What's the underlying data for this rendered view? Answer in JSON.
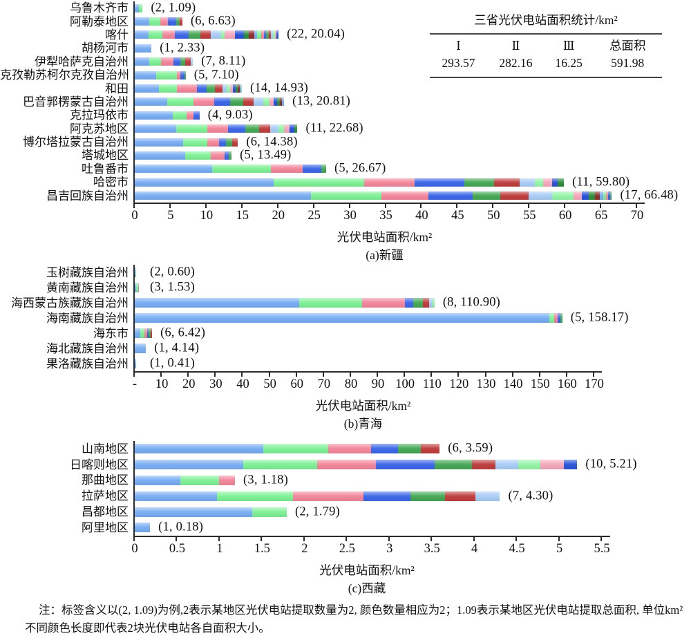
{
  "palette_cycle": [
    "#79ADF2",
    "#7FF096",
    "#F2879C",
    "#3E68E8",
    "#47A857",
    "#BF3F3F",
    "#A9CDF6",
    "#96F5A8",
    "#F5A8BC",
    "#2B55D8",
    "#2F8F3C",
    "#8F2F2F"
  ],
  "table": {
    "title": "三省光伏电站面积统计/km²",
    "headers": [
      "Ⅰ",
      "Ⅱ",
      "Ⅲ",
      "总面积"
    ],
    "values": [
      "293.57",
      "282.16",
      "16.25",
      "591.98"
    ]
  },
  "note": {
    "line1": "注：标签含义以(2, 1.09)为例,2表示某地区光伏电站提取数量为2, 颜色数量相应为2；1.09表示某地区光伏电站提取总面积, 单位km²",
    "line2": "不同颜色长度即代表2块光伏电站各自面积大小。"
  },
  "chart_data": [
    {
      "type": "bar",
      "stacked": true,
      "orientation": "horizontal",
      "title": "(a)新疆",
      "xlabel": "光伏电站面积/km²",
      "xlim": [
        0,
        70
      ],
      "xticks": [
        "0",
        "5",
        "10",
        "15",
        "20",
        "25",
        "30",
        "35",
        "40",
        "45",
        "50",
        "55",
        "60",
        "65",
        "70"
      ],
      "rows": [
        {
          "label": "乌鲁木齐市",
          "count": 2,
          "total": 1.09,
          "annotation": "(2, 1.09)",
          "segments": [
            0.55,
            0.54
          ]
        },
        {
          "label": "阿勒泰地区",
          "count": 6,
          "total": 6.63,
          "annotation": "(6, 6.63)",
          "segments": [
            2.0,
            1.6,
            1.0,
            1.2,
            0.5,
            0.33
          ]
        },
        {
          "label": "喀什",
          "count": 22,
          "total": 20.04,
          "annotation": "(22, 20.04)",
          "segments": [
            1.93,
            1.92,
            1.75,
            1.9,
            1.65,
            1.45,
            1.4,
            0.5,
            1.5,
            1.2,
            0.7,
            0.8,
            0.4,
            0.5,
            0.45,
            0.3,
            0.35,
            0.3,
            0.25,
            0.3,
            0.25,
            0.24
          ]
        },
        {
          "label": "胡杨河市",
          "count": 1,
          "total": 2.33,
          "annotation": "(1, 2.33)",
          "segments": [
            2.33
          ]
        },
        {
          "label": "伊犁哈萨克自治州",
          "count": 7,
          "total": 8.11,
          "annotation": "(7, 8.11)",
          "segments": [
            2.0,
            1.7,
            1.7,
            1.0,
            0.6,
            0.8,
            0.31
          ]
        },
        {
          "label": "克孜勒苏柯尔克孜自治州",
          "count": 5,
          "total": 7.1,
          "annotation": "(5, 7.10)",
          "segments": [
            3.0,
            2.9,
            0.5,
            0.5,
            0.2
          ]
        },
        {
          "label": "和田",
          "count": 14,
          "total": 14.93,
          "annotation": "(14, 14.93)",
          "segments": [
            3.4,
            2.5,
            2.8,
            1.3,
            1.2,
            1.0,
            0.6,
            0.5,
            0.4,
            0.35,
            0.3,
            0.25,
            0.2,
            0.13
          ]
        },
        {
          "label": "巴音郭楞蒙古自治州",
          "count": 13,
          "total": 20.81,
          "annotation": "(13, 20.81)",
          "segments": [
            4.5,
            3.7,
            2.9,
            2.2,
            1.8,
            1.5,
            1.35,
            0.8,
            0.6,
            0.5,
            0.4,
            0.3,
            0.26
          ]
        },
        {
          "label": "克拉玛依市",
          "count": 4,
          "total": 9.03,
          "annotation": "(4, 9.03)",
          "segments": [
            5.3,
            1.9,
            1.0,
            0.83
          ]
        },
        {
          "label": "阿克苏地区",
          "count": 11,
          "total": 22.68,
          "annotation": "(11, 22.68)",
          "segments": [
            5.8,
            4.3,
            2.9,
            2.4,
            1.9,
            1.55,
            1.15,
            0.8,
            0.75,
            0.67,
            0.46
          ]
        },
        {
          "label": "博尔塔拉蒙古自治州",
          "count": 6,
          "total": 14.38,
          "annotation": "(6, 14.38)",
          "segments": [
            6.7,
            3.4,
            1.65,
            1.0,
            0.8,
            0.83
          ]
        },
        {
          "label": "塔城地区",
          "count": 5,
          "total": 13.49,
          "annotation": "(5, 13.49)",
          "segments": [
            7.0,
            3.6,
            1.9,
            0.6,
            0.39
          ]
        },
        {
          "label": "吐鲁番市",
          "count": 5,
          "total": 26.67,
          "annotation": "(5, 26.67)",
          "segments": [
            10.8,
            8.2,
            4.4,
            2.6,
            0.67
          ]
        },
        {
          "label": "哈密市",
          "count": 11,
          "total": 59.8,
          "annotation": "(11, 59.80)",
          "segments": [
            19.4,
            12.6,
            7.0,
            6.9,
            4.2,
            3.5,
            2.2,
            1.1,
            1.3,
            0.7,
            0.9
          ]
        },
        {
          "label": "昌吉回族自治州",
          "count": 17,
          "total": 66.48,
          "annotation": "(17, 66.48)",
          "segments": [
            24.6,
            9.8,
            6.5,
            6.2,
            3.8,
            4.0,
            3.3,
            2.9,
            1.2,
            1.0,
            0.8,
            0.7,
            0.5,
            0.4,
            0.3,
            0.28,
            0.2
          ]
        }
      ]
    },
    {
      "type": "bar",
      "stacked": true,
      "orientation": "horizontal",
      "title": "(b)青海",
      "xlabel": "光伏电站面积/km²",
      "xlim": [
        0,
        170
      ],
      "xticks": [
        "-",
        "10",
        "20",
        "30",
        "40",
        "50",
        "60",
        "70",
        "80",
        "90",
        "100",
        "110",
        "120",
        "130",
        "140",
        "150",
        "160",
        "170"
      ],
      "rows": [
        {
          "label": "玉树藏族自治州",
          "count": 2,
          "total": 0.6,
          "annotation": "(2, 0.60)",
          "segments": [
            0.25,
            0.35
          ]
        },
        {
          "label": "黄南藏族自治州",
          "count": 3,
          "total": 1.53,
          "annotation": "(3, 1.53)",
          "segments": [
            0.45,
            0.85,
            0.23
          ]
        },
        {
          "label": "海西蒙古族藏族自治州",
          "count": 8,
          "total": 110.9,
          "annotation": "(8, 110.90)",
          "segments": [
            60.9,
            23.2,
            15.9,
            3.1,
            3.5,
            2.4,
            1.2,
            0.7
          ]
        },
        {
          "label": "海南藏族自治州",
          "count": 5,
          "total": 158.17,
          "annotation": "(5, 158.17)",
          "segments": [
            153.5,
            1.7,
            1.2,
            1.0,
            0.77
          ]
        },
        {
          "label": "海东市",
          "count": 6,
          "total": 6.42,
          "annotation": "(6, 6.42)",
          "segments": [
            2.0,
            1.5,
            1.0,
            0.7,
            0.7,
            0.52
          ]
        },
        {
          "label": "海北藏族自治州",
          "count": 1,
          "total": 4.14,
          "annotation": "(1, 4.14)",
          "segments": [
            4.14
          ]
        },
        {
          "label": "果洛藏族自治州",
          "count": 1,
          "total": 0.41,
          "annotation": "(1, 0.41)",
          "segments": [
            0.41
          ]
        }
      ]
    },
    {
      "type": "bar",
      "stacked": true,
      "orientation": "horizontal",
      "title": "(c)西藏",
      "xlabel": "光伏电站面积/km²",
      "xlim": [
        0,
        5.5
      ],
      "xticks": [
        "0",
        "0.5",
        "1",
        "1.5",
        "2",
        "2.5",
        "3",
        "3.5",
        "4",
        "4.5",
        "5",
        "5.5"
      ],
      "rows": [
        {
          "label": "山南地区",
          "count": 6,
          "total": 3.59,
          "annotation": "(6, 3.59)",
          "segments": [
            1.51,
            0.77,
            0.5,
            0.32,
            0.27,
            0.22
          ]
        },
        {
          "label": "日喀则地区",
          "count": 10,
          "total": 5.21,
          "annotation": "(10, 5.21)",
          "segments": [
            1.28,
            0.87,
            0.69,
            0.69,
            0.44,
            0.28,
            0.27,
            0.26,
            0.27,
            0.16
          ]
        },
        {
          "label": "那曲地区",
          "count": 3,
          "total": 1.18,
          "annotation": "(3, 1.18)",
          "segments": [
            0.54,
            0.45,
            0.19
          ]
        },
        {
          "label": "拉萨地区",
          "count": 7,
          "total": 4.3,
          "annotation": "(7, 4.30)",
          "segments": [
            0.97,
            0.89,
            0.83,
            0.56,
            0.4,
            0.36,
            0.29
          ]
        },
        {
          "label": "昌都地区",
          "count": 2,
          "total": 1.79,
          "annotation": "(2, 1.79)",
          "segments": [
            1.38,
            0.41
          ]
        },
        {
          "label": "阿里地区",
          "count": 1,
          "total": 0.18,
          "annotation": "(1, 0.18)",
          "segments": [
            0.18
          ]
        }
      ]
    }
  ]
}
